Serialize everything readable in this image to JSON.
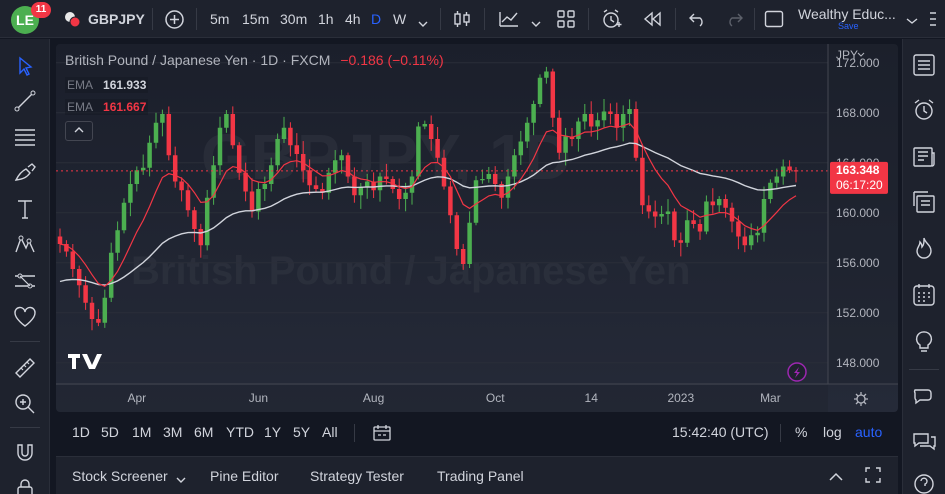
{
  "topbar": {
    "notification_count": "11",
    "logo_text": "LE",
    "symbol": "GBPJPY",
    "intervals": [
      "5m",
      "15m",
      "30m",
      "1h",
      "4h",
      "D",
      "W"
    ],
    "active_interval": "D",
    "workspace_name": "Wealthy Educ...",
    "workspace_save": "Save"
  },
  "chart": {
    "title": "British Pound / Japanese Yen · 1D · FXCM",
    "change": "−0.186 (−0.11%)",
    "ema1_label": "EMA",
    "ema1_value": "161.933",
    "ema2_label": "EMA",
    "ema2_value": "161.667",
    "currency": "JPY",
    "watermark_symbol": "GBPJPY, 1D",
    "watermark_name": "British Pound / Japanese Yen",
    "current_price": "163.348",
    "countdown": "06:17:20"
  },
  "chart_data": {
    "type": "candlestick",
    "ylim": [
      146.3,
      173.5
    ],
    "y_ticks": [
      172,
      168,
      164,
      160,
      156,
      152,
      148
    ],
    "y_tick_labels": [
      "172.000",
      "168.000",
      "164.000",
      "160.000",
      "156.000",
      "152.000",
      "148.000"
    ],
    "x_tick_labels": [
      "Apr",
      "Jun",
      "Aug",
      "Oct",
      "14",
      "2023",
      "Mar"
    ],
    "ema_fast_color": "#f23645",
    "ema_slow_color": "#d1d4dc",
    "up_color": "#4caf50",
    "down_color": "#f23645",
    "ema_fast_value": 161.933,
    "ema_slow_value": 161.667,
    "last_price": 163.348,
    "closes": [
      157.5,
      156.9,
      155.5,
      154.2,
      152.8,
      151.5,
      151.2,
      153.2,
      156.8,
      158.6,
      160.8,
      162.3,
      163.4,
      163.6,
      165.6,
      167.2,
      167.9,
      164.6,
      162.5,
      161.8,
      160.2,
      158.7,
      157.4,
      161.2,
      163.8,
      166.8,
      167.9,
      165.4,
      163.2,
      161.7,
      160.1,
      161.9,
      162.3,
      163.8,
      165.9,
      166.8,
      165.4,
      164.7,
      163.4,
      162.2,
      161.9,
      161.6,
      163.2,
      164.2,
      164.6,
      162.9,
      161.4,
      162.1,
      162.5,
      161.8,
      162.9,
      162.7,
      161.9,
      161.1,
      161.6,
      162.9,
      166.9,
      167.1,
      165.9,
      164.4,
      162.1,
      159.8,
      157.1,
      155.9,
      159.2,
      162.6,
      162.7,
      163.1,
      162.3,
      161.2,
      162.9,
      164.6,
      165.7,
      167.2,
      168.7,
      170.8,
      171.3,
      167.6,
      164.8,
      166.1,
      165.9,
      167.3,
      167.9,
      166.9,
      167.4,
      168.1,
      167.9,
      166.8,
      167.9,
      168.3,
      164.4,
      160.6,
      160.1,
      159.7,
      159.9,
      160.1,
      157.8,
      157.6,
      159.4,
      159.1,
      158.5,
      160.9,
      160.6,
      161.1,
      160.4,
      159.3,
      158.1,
      157.4,
      158.2,
      158.4,
      161.1,
      162.4,
      162.9,
      163.7,
      163.4,
      163.3
    ]
  },
  "time_bar": {
    "ranges": [
      "1D",
      "5D",
      "1M",
      "3M",
      "6M",
      "YTD",
      "1Y",
      "5Y",
      "All"
    ],
    "clock": "15:42:40 (UTC)",
    "percent": "%",
    "log": "log",
    "auto": "auto"
  },
  "bottom_panel": {
    "tabs": [
      "Stock Screener",
      "Pine Editor",
      "Strategy Tester",
      "Trading Panel"
    ]
  }
}
